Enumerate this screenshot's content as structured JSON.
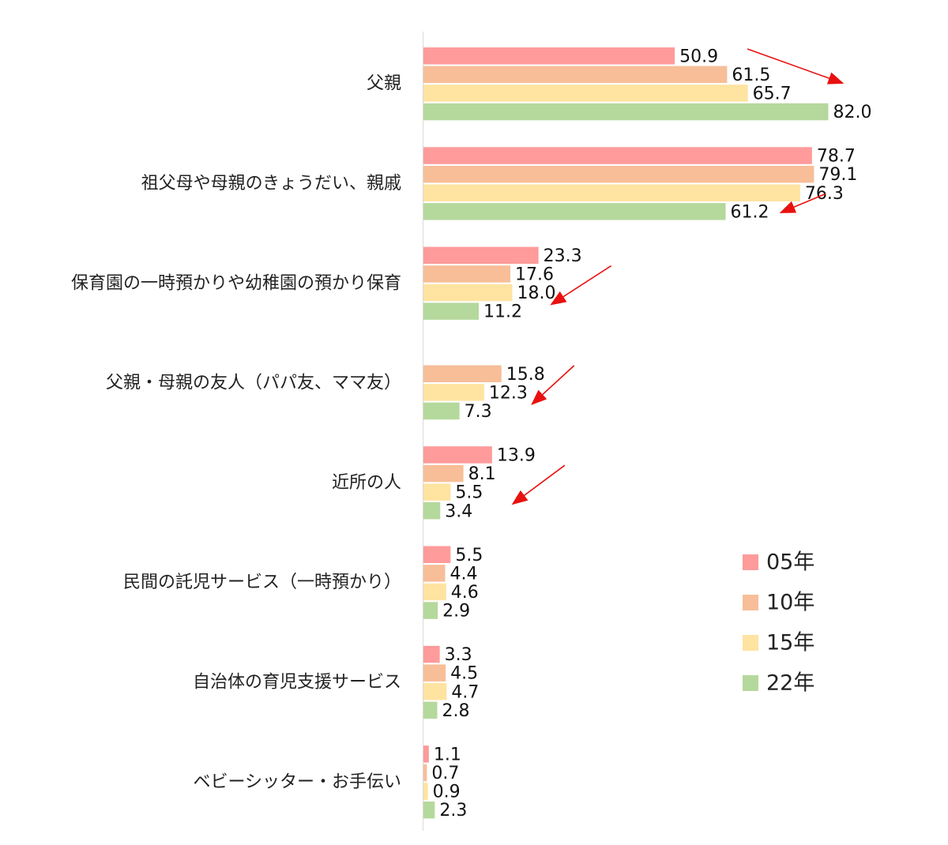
{
  "chart_data": {
    "type": "bar",
    "orientation": "horizontal",
    "xlim": [
      0,
      100
    ],
    "grid": false,
    "legend_position": "right",
    "categories": [
      "父親",
      "祖父母や母親のきょうだい、親戚",
      "保育園の一時預かりや幼稚園の預かり保育",
      "父親・母親の友人（パパ友、ママ友）",
      "近所の人",
      "民間の託児サービス（一時預かり）",
      "自治体の育児支援サービス",
      "ベビーシッター・お手伝い"
    ],
    "series": [
      {
        "name": "05年",
        "color": "#FF9B9B",
        "values": [
          50.9,
          78.7,
          23.3,
          null,
          13.9,
          5.5,
          3.3,
          1.1
        ],
        "labels": [
          "50.9",
          "78.7",
          "23.3",
          "",
          "13.9",
          "5.5",
          "3.3",
          "1.1"
        ]
      },
      {
        "name": "10年",
        "color": "#F7BE98",
        "values": [
          61.5,
          79.1,
          17.6,
          15.8,
          8.1,
          4.4,
          4.5,
          0.7
        ],
        "labels": [
          "61.5",
          "79.1",
          "17.6",
          "15.8",
          "8.1",
          "4.4",
          "4.5",
          "0.7"
        ]
      },
      {
        "name": "15年",
        "color": "#FFE3A0",
        "values": [
          65.7,
          76.3,
          18.0,
          12.3,
          5.5,
          4.6,
          4.7,
          0.9
        ],
        "labels": [
          "65.7",
          "76.3",
          "18.0",
          "12.3",
          "5.5",
          "4.6",
          "4.7",
          "0.9"
        ]
      },
      {
        "name": "22年",
        "color": "#B5D89C",
        "values": [
          82.0,
          61.2,
          11.2,
          7.3,
          3.4,
          2.9,
          2.8,
          2.3
        ],
        "labels": [
          "82.0",
          "61.2",
          "11.2",
          "7.3",
          "3.4",
          "2.9",
          "2.8",
          "2.3"
        ]
      }
    ],
    "trend_arrows": {
      "color": "#E8110F",
      "items": [
        {
          "category_index": 0,
          "direction": "increase"
        },
        {
          "category_index": 1,
          "direction": "decrease"
        },
        {
          "category_index": 2,
          "direction": "decrease"
        },
        {
          "category_index": 3,
          "direction": "decrease"
        },
        {
          "category_index": 4,
          "direction": "decrease"
        }
      ]
    }
  }
}
